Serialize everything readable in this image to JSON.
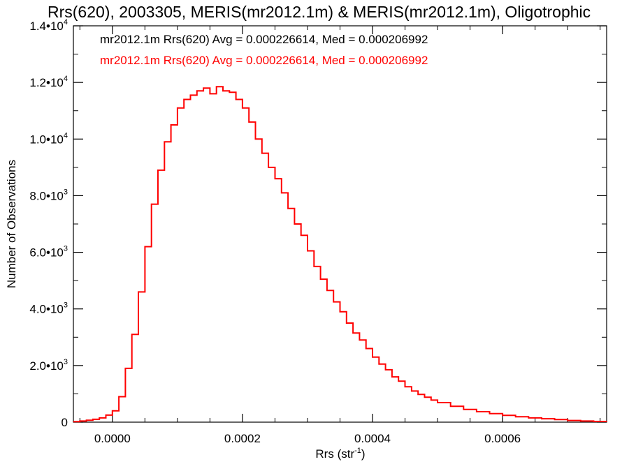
{
  "chart_data": {
    "type": "histogram",
    "title": "Rrs(620), 2003305, MERIS(mr2012.1m) & MERIS(mr2012.1m), Oligotrophic",
    "xlabel": "Rrs (str",
    "xlabel_sup": "-1",
    "xlabel_close": ")",
    "ylabel": "Number of Observations",
    "xlim": [
      -6e-05,
      0.00076
    ],
    "ylim": [
      0,
      14000
    ],
    "xticks": [
      {
        "value": 0.0,
        "label": "0.0000"
      },
      {
        "value": 0.0002,
        "label": "0.0002"
      },
      {
        "value": 0.0004,
        "label": "0.0004"
      },
      {
        "value": 0.0006,
        "label": "0.0006"
      }
    ],
    "yticks": [
      {
        "value": 0,
        "base": "0",
        "exp": ""
      },
      {
        "value": 2000,
        "base": "2.0•10",
        "exp": "3"
      },
      {
        "value": 4000,
        "base": "4.0•10",
        "exp": "3"
      },
      {
        "value": 6000,
        "base": "6.0•10",
        "exp": "3"
      },
      {
        "value": 8000,
        "base": "8.0•10",
        "exp": "3"
      },
      {
        "value": 10000,
        "base": "1.0•10",
        "exp": "4"
      },
      {
        "value": 12000,
        "base": "1.2•10",
        "exp": "4"
      },
      {
        "value": 14000,
        "base": "1.4•10",
        "exp": "4"
      }
    ],
    "annotations": [
      {
        "text": "mr2012.1m Rrs(620) Avg = 0.000226614, Med = 0.000206992",
        "color": "#000000"
      },
      {
        "text": "mr2012.1m Rrs(620) Avg = 0.000226614, Med = 0.000206992",
        "color": "#ff0000"
      }
    ],
    "series": [
      {
        "color": "#ff0000",
        "x": [
          -6e-05,
          -5e-05,
          -4e-05,
          -3e-05,
          -2e-05,
          -1e-05,
          0,
          1e-05,
          2e-05,
          3e-05,
          4e-05,
          5e-05,
          6e-05,
          7e-05,
          8e-05,
          9e-05,
          0.0001,
          0.00011,
          0.00012,
          0.00013,
          0.00014,
          0.00015,
          0.00016,
          0.00017,
          0.00018,
          0.00019,
          0.0002,
          0.00021,
          0.00022,
          0.00023,
          0.00024,
          0.00025,
          0.00026,
          0.00027,
          0.00028,
          0.00029,
          0.0003,
          0.00031,
          0.00032,
          0.00033,
          0.00034,
          0.00035,
          0.00036,
          0.00037,
          0.00038,
          0.00039,
          0.0004,
          0.00041,
          0.00042,
          0.00043,
          0.00044,
          0.00045,
          0.00046,
          0.00047,
          0.00048,
          0.00049,
          0.0005,
          0.00052,
          0.00054,
          0.00056,
          0.00058,
          0.0006,
          0.00062,
          0.00064,
          0.00066,
          0.00068,
          0.0007,
          0.00072,
          0.00074,
          0.00076
        ],
        "y": [
          20,
          40,
          70,
          100,
          150,
          250,
          400,
          900,
          1900,
          3100,
          4600,
          6200,
          7700,
          8900,
          9900,
          10500,
          11100,
          11400,
          11550,
          11700,
          11800,
          11600,
          11850,
          11700,
          11650,
          11400,
          11100,
          10600,
          10000,
          9500,
          9000,
          8600,
          8100,
          7550,
          7000,
          6600,
          6050,
          5500,
          5050,
          4650,
          4250,
          3900,
          3500,
          3150,
          2900,
          2600,
          2300,
          2050,
          1850,
          1600,
          1450,
          1250,
          1100,
          980,
          880,
          780,
          690,
          560,
          450,
          370,
          300,
          240,
          190,
          150,
          120,
          90,
          60,
          40,
          25,
          15
        ]
      }
    ]
  }
}
